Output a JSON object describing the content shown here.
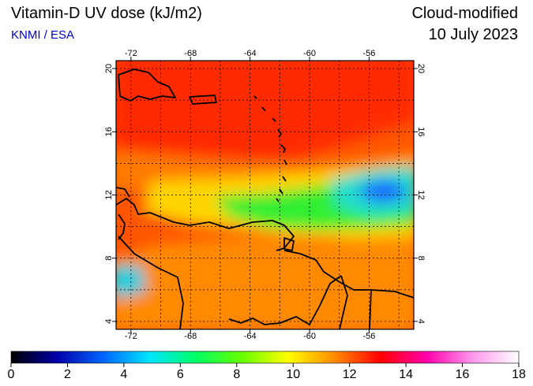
{
  "header": {
    "title": "Vitamin-D UV dose (kJ/m2)",
    "credit": "KNMI / ESA",
    "product": "Cloud-modified",
    "date": "10 July 2023"
  },
  "map": {
    "lon_range": [
      -73,
      -53
    ],
    "lat_range": [
      3.5,
      20.5
    ],
    "lon_ticks": [
      -72,
      -68,
      -64,
      -60,
      -56
    ],
    "lat_ticks": [
      4,
      8,
      12,
      16,
      20
    ],
    "lon_tick_labels": [
      "-72",
      "-68",
      "-64",
      "-60",
      "-56"
    ],
    "lat_tick_labels": [
      "4",
      "8",
      "12",
      "16",
      "20"
    ],
    "grid": "dotted",
    "background_color": "#ff5500",
    "regions": [
      {
        "name": "north-red-zone",
        "color": "#ff2a00"
      },
      {
        "name": "sea-band-orange",
        "color": "#ff7a00"
      },
      {
        "name": "cloud-band-yellow",
        "color": "#ffd400"
      },
      {
        "name": "cloud-band-green",
        "color": "#33ee33"
      },
      {
        "name": "cloud-core-cyan",
        "color": "#22ddcc"
      },
      {
        "name": "cloud-core-blue",
        "color": "#1a66ff"
      },
      {
        "name": "south-land-orange",
        "color": "#ff8a00"
      },
      {
        "name": "west-coast-cyan",
        "color": "#22ccdd"
      }
    ]
  },
  "colorbar": {
    "ticks": [
      "0",
      "2",
      "4",
      "6",
      "8",
      "10",
      "12",
      "14",
      "16",
      "18"
    ],
    "min": 0,
    "max": 18,
    "stops": [
      "#000000",
      "#0000aa",
      "#0066ff",
      "#00e5ff",
      "#00ff66",
      "#66ff00",
      "#ffff00",
      "#ff8c00",
      "#ff0000",
      "#ff00aa",
      "#ff99ee",
      "#ffffff"
    ]
  }
}
